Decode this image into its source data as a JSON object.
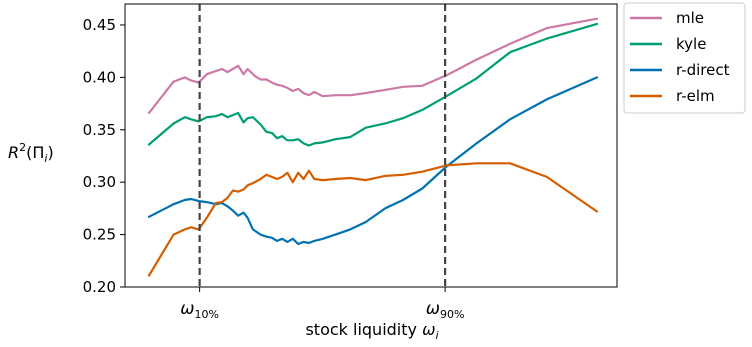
{
  "chart_data": {
    "type": "line",
    "title": "",
    "xlabel": "stock liquidity ω_i",
    "ylabel": "R²(Π_i)",
    "ylim": [
      0.2,
      0.47
    ],
    "xlim": [
      0,
      1
    ],
    "grid": false,
    "legend_placement": "outside-right-top",
    "yticks": [
      0.2,
      0.25,
      0.3,
      0.35,
      0.4,
      0.45
    ],
    "ytick_labels": [
      "0.20",
      "0.25",
      "0.30",
      "0.35",
      "0.40",
      "0.45"
    ],
    "vlines": [
      {
        "x": 0.113,
        "label_base": "ω",
        "label_sub": "10%",
        "style": "dashed",
        "color": "#444444"
      },
      {
        "x": 0.661,
        "label_base": "ω",
        "label_sub": "90%",
        "style": "dashed",
        "color": "#444444"
      }
    ],
    "series": [
      {
        "name": "mle",
        "color": "#cc79a7",
        "x": [
          0.0,
          0.055,
          0.08,
          0.094,
          0.111,
          0.129,
          0.149,
          0.163,
          0.175,
          0.187,
          0.199,
          0.211,
          0.22,
          0.237,
          0.249,
          0.262,
          0.274,
          0.286,
          0.297,
          0.309,
          0.321,
          0.333,
          0.345,
          0.357,
          0.369,
          0.388,
          0.416,
          0.449,
          0.484,
          0.527,
          0.567,
          0.61,
          0.664,
          0.731,
          0.806,
          0.888,
          1.0
        ],
        "y": [
          0.366,
          0.396,
          0.4,
          0.397,
          0.395,
          0.403,
          0.406,
          0.408,
          0.405,
          0.408,
          0.411,
          0.403,
          0.408,
          0.401,
          0.398,
          0.398,
          0.395,
          0.393,
          0.392,
          0.39,
          0.387,
          0.389,
          0.385,
          0.383,
          0.386,
          0.382,
          0.383,
          0.383,
          0.385,
          0.388,
          0.391,
          0.392,
          0.402,
          0.417,
          0.432,
          0.447,
          0.456
        ]
      },
      {
        "name": "kyle",
        "color": "#009e73",
        "x": [
          0.0,
          0.055,
          0.08,
          0.094,
          0.111,
          0.129,
          0.149,
          0.163,
          0.175,
          0.187,
          0.199,
          0.211,
          0.22,
          0.232,
          0.249,
          0.262,
          0.274,
          0.286,
          0.297,
          0.309,
          0.321,
          0.333,
          0.345,
          0.357,
          0.369,
          0.388,
          0.416,
          0.449,
          0.484,
          0.527,
          0.567,
          0.61,
          0.664,
          0.731,
          0.806,
          0.888,
          1.0
        ],
        "y": [
          0.336,
          0.356,
          0.362,
          0.36,
          0.358,
          0.362,
          0.363,
          0.365,
          0.362,
          0.364,
          0.366,
          0.357,
          0.361,
          0.362,
          0.355,
          0.348,
          0.347,
          0.342,
          0.344,
          0.34,
          0.34,
          0.341,
          0.337,
          0.335,
          0.337,
          0.338,
          0.341,
          0.343,
          0.352,
          0.356,
          0.361,
          0.369,
          0.382,
          0.399,
          0.424,
          0.437,
          0.451
        ]
      },
      {
        "name": "r-direct",
        "color": "#0072b2",
        "x": [
          0.0,
          0.055,
          0.08,
          0.094,
          0.111,
          0.129,
          0.149,
          0.163,
          0.175,
          0.187,
          0.199,
          0.211,
          0.22,
          0.232,
          0.249,
          0.262,
          0.274,
          0.286,
          0.297,
          0.309,
          0.321,
          0.333,
          0.345,
          0.357,
          0.369,
          0.388,
          0.416,
          0.449,
          0.484,
          0.527,
          0.567,
          0.61,
          0.664,
          0.731,
          0.806,
          0.888,
          1.0
        ],
        "y": [
          0.267,
          0.279,
          0.283,
          0.284,
          0.282,
          0.281,
          0.279,
          0.28,
          0.277,
          0.273,
          0.268,
          0.271,
          0.266,
          0.255,
          0.25,
          0.248,
          0.247,
          0.244,
          0.246,
          0.243,
          0.246,
          0.241,
          0.243,
          0.242,
          0.244,
          0.246,
          0.25,
          0.255,
          0.262,
          0.275,
          0.283,
          0.294,
          0.315,
          0.337,
          0.36,
          0.379,
          0.4
        ]
      },
      {
        "name": "r-elm",
        "color": "#d55e00",
        "x": [
          0.0,
          0.055,
          0.08,
          0.094,
          0.111,
          0.129,
          0.149,
          0.163,
          0.175,
          0.187,
          0.199,
          0.211,
          0.22,
          0.232,
          0.249,
          0.262,
          0.274,
          0.286,
          0.297,
          0.309,
          0.321,
          0.333,
          0.345,
          0.357,
          0.369,
          0.388,
          0.416,
          0.449,
          0.484,
          0.527,
          0.567,
          0.61,
          0.664,
          0.731,
          0.806,
          0.888,
          1.0
        ],
        "y": [
          0.211,
          0.25,
          0.255,
          0.257,
          0.255,
          0.266,
          0.28,
          0.281,
          0.285,
          0.292,
          0.291,
          0.293,
          0.297,
          0.299,
          0.303,
          0.307,
          0.305,
          0.303,
          0.305,
          0.309,
          0.3,
          0.309,
          0.303,
          0.311,
          0.303,
          0.302,
          0.303,
          0.304,
          0.302,
          0.306,
          0.307,
          0.31,
          0.316,
          0.318,
          0.318,
          0.305,
          0.272
        ]
      }
    ]
  }
}
